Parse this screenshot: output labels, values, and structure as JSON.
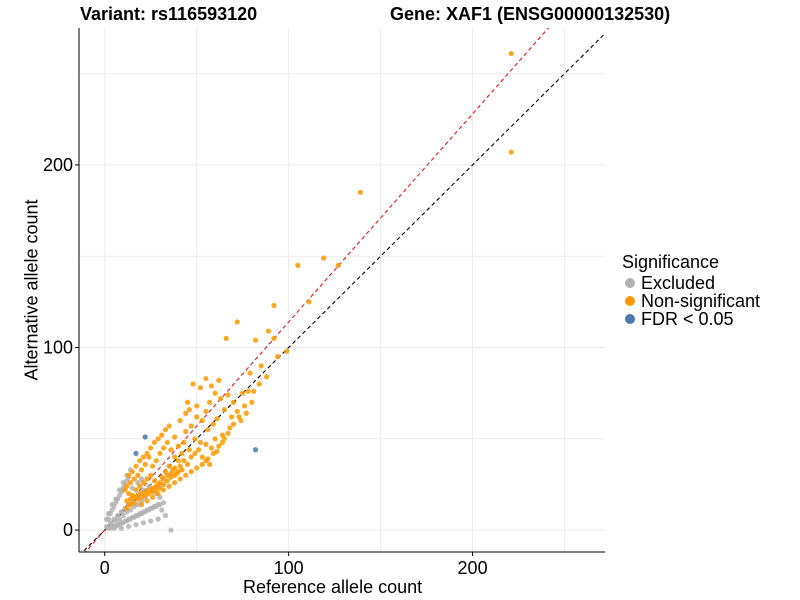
{
  "chart_data": {
    "type": "scatter",
    "title_variant": "Variant: rs116593120",
    "title_gene": "Gene: XAF1 (ENSG00000132530)",
    "xlabel": "Reference allele count",
    "ylabel": "Alternative allele count",
    "xlim": [
      -14,
      272
    ],
    "ylim": [
      -12,
      275
    ],
    "x_ticks": [
      0,
      100,
      200
    ],
    "y_ticks": [
      0,
      100,
      200
    ],
    "grid": true,
    "reference_lines": [
      {
        "name": "identity",
        "slope": 1,
        "intercept": 0,
        "color": "#000000",
        "dash": "dashed"
      },
      {
        "name": "fit",
        "slope": 1.14,
        "intercept": 0,
        "color": "#e41a1c",
        "dash": "dashed"
      }
    ],
    "legend": {
      "title": "Significance",
      "position": "right",
      "entries": [
        {
          "label": "Excluded",
          "color": "#b3b3b3"
        },
        {
          "label": "Non-significant",
          "color": "#ff9900"
        },
        {
          "label": "FDR < 0.05",
          "color": "#4a79b0"
        }
      ]
    },
    "series": [
      {
        "name": "Excluded",
        "color": "#b3b3b3",
        "points": [
          [
            1,
            2
          ],
          [
            2,
            1
          ],
          [
            3,
            4
          ],
          [
            4,
            3
          ],
          [
            5,
            6
          ],
          [
            6,
            5
          ],
          [
            7,
            8
          ],
          [
            8,
            6
          ],
          [
            9,
            10
          ],
          [
            10,
            8
          ],
          [
            11,
            12
          ],
          [
            12,
            10
          ],
          [
            13,
            14
          ],
          [
            14,
            11
          ],
          [
            15,
            16
          ],
          [
            16,
            13
          ],
          [
            17,
            18
          ],
          [
            18,
            14
          ],
          [
            19,
            20
          ],
          [
            20,
            16
          ],
          [
            21,
            22
          ],
          [
            22,
            18
          ],
          [
            2,
            6
          ],
          [
            3,
            9
          ],
          [
            4,
            11
          ],
          [
            5,
            13
          ],
          [
            6,
            15
          ],
          [
            7,
            17
          ],
          [
            8,
            19
          ],
          [
            9,
            21
          ],
          [
            10,
            23
          ],
          [
            11,
            25
          ],
          [
            12,
            27
          ],
          [
            13,
            29
          ],
          [
            6,
            2
          ],
          [
            8,
            3
          ],
          [
            10,
            4
          ],
          [
            12,
            5
          ],
          [
            14,
            6
          ],
          [
            16,
            7
          ],
          [
            18,
            8
          ],
          [
            20,
            9
          ],
          [
            22,
            10
          ],
          [
            24,
            11
          ],
          [
            26,
            12
          ],
          [
            28,
            13
          ],
          [
            30,
            14
          ],
          [
            32,
            15
          ],
          [
            3,
            1
          ],
          [
            5,
            2
          ],
          [
            7,
            3
          ],
          [
            9,
            4
          ],
          [
            11,
            5
          ],
          [
            13,
            6
          ],
          [
            15,
            7
          ],
          [
            17,
            8
          ],
          [
            19,
            9
          ],
          [
            21,
            10
          ],
          [
            23,
            11
          ],
          [
            25,
            12
          ],
          [
            27,
            13
          ],
          [
            29,
            14
          ],
          [
            36,
            0
          ],
          [
            1,
            6
          ],
          [
            2,
            9
          ],
          [
            4,
            14
          ],
          [
            6,
            17
          ],
          [
            8,
            22
          ],
          [
            10,
            26
          ],
          [
            12,
            30
          ],
          [
            14,
            33
          ],
          [
            5,
            1
          ],
          [
            9,
            1
          ],
          [
            13,
            2
          ],
          [
            17,
            3
          ],
          [
            21,
            4
          ],
          [
            25,
            5
          ],
          [
            29,
            6
          ],
          [
            33,
            8
          ],
          [
            15,
            23
          ],
          [
            18,
            26
          ],
          [
            20,
            28
          ],
          [
            24,
            24
          ],
          [
            26,
            22
          ],
          [
            28,
            20
          ],
          [
            30,
            18
          ],
          [
            31,
            11
          ]
        ]
      },
      {
        "name": "Non-significant",
        "color": "#ff9900",
        "points": [
          [
            221,
            261
          ],
          [
            221,
            207
          ],
          [
            139,
            185
          ],
          [
            119,
            149
          ],
          [
            105,
            145
          ],
          [
            127,
            145
          ],
          [
            111,
            125
          ],
          [
            92,
            123
          ],
          [
            72,
            114
          ],
          [
            99,
            98
          ],
          [
            89,
            109
          ],
          [
            82,
            104
          ],
          [
            92,
            105
          ],
          [
            66,
            105
          ],
          [
            48,
            80
          ],
          [
            52,
            78
          ],
          [
            55,
            83
          ],
          [
            58,
            79
          ],
          [
            60,
            75
          ],
          [
            62,
            82
          ],
          [
            45,
            70
          ],
          [
            50,
            68
          ],
          [
            55,
            65
          ],
          [
            57,
            70
          ],
          [
            63,
            72
          ],
          [
            67,
            74
          ],
          [
            70,
            70
          ],
          [
            72,
            65
          ],
          [
            75,
            75
          ],
          [
            78,
            76
          ],
          [
            81,
            76
          ],
          [
            80,
            70
          ],
          [
            76,
            68
          ],
          [
            74,
            60
          ],
          [
            69,
            62
          ],
          [
            65,
            66
          ],
          [
            61,
            61
          ],
          [
            59,
            58
          ],
          [
            68,
            56
          ],
          [
            64,
            52
          ],
          [
            60,
            50
          ],
          [
            56,
            55
          ],
          [
            53,
            60
          ],
          [
            50,
            62
          ],
          [
            47,
            57
          ],
          [
            44,
            54
          ],
          [
            41,
            60
          ],
          [
            38,
            51
          ],
          [
            40,
            46
          ],
          [
            43,
            48
          ],
          [
            46,
            44
          ],
          [
            49,
            50
          ],
          [
            52,
            48
          ],
          [
            55,
            47
          ],
          [
            58,
            45
          ],
          [
            61,
            43
          ],
          [
            64,
            48
          ],
          [
            67,
            53
          ],
          [
            30,
            42
          ],
          [
            32,
            45
          ],
          [
            34,
            48
          ],
          [
            36,
            44
          ],
          [
            38,
            40
          ],
          [
            40,
            38
          ],
          [
            42,
            42
          ],
          [
            28,
            38
          ],
          [
            26,
            35
          ],
          [
            24,
            40
          ],
          [
            22,
            36
          ],
          [
            20,
            33
          ],
          [
            18,
            30
          ],
          [
            16,
            28
          ],
          [
            14,
            26
          ],
          [
            12,
            24
          ],
          [
            11,
            22
          ],
          [
            13,
            20
          ],
          [
            15,
            19
          ],
          [
            17,
            22
          ],
          [
            19,
            24
          ],
          [
            21,
            26
          ],
          [
            23,
            28
          ],
          [
            25,
            30
          ],
          [
            27,
            27
          ],
          [
            29,
            25
          ],
          [
            31,
            29
          ],
          [
            33,
            32
          ],
          [
            35,
            35
          ],
          [
            37,
            33
          ],
          [
            39,
            31
          ],
          [
            41,
            35
          ],
          [
            43,
            38
          ],
          [
            45,
            36
          ],
          [
            47,
            40
          ],
          [
            49,
            42
          ],
          [
            51,
            44
          ],
          [
            53,
            40
          ],
          [
            55,
            38
          ],
          [
            57,
            36
          ],
          [
            12,
            16
          ],
          [
            14,
            17
          ],
          [
            16,
            18
          ],
          [
            18,
            19
          ],
          [
            20,
            20
          ],
          [
            22,
            21
          ],
          [
            24,
            22
          ],
          [
            26,
            23
          ],
          [
            28,
            24
          ],
          [
            30,
            26
          ],
          [
            32,
            28
          ],
          [
            34,
            30
          ],
          [
            36,
            31
          ],
          [
            38,
            34
          ],
          [
            25,
            45
          ],
          [
            23,
            42
          ],
          [
            21,
            40
          ],
          [
            19,
            38
          ],
          [
            17,
            35
          ],
          [
            15,
            32
          ],
          [
            13,
            30
          ],
          [
            27,
            48
          ],
          [
            29,
            50
          ],
          [
            31,
            52
          ],
          [
            33,
            55
          ],
          [
            35,
            57
          ],
          [
            44,
            64
          ],
          [
            46,
            66
          ],
          [
            20,
            14
          ],
          [
            23,
            16
          ],
          [
            26,
            18
          ],
          [
            29,
            20
          ],
          [
            32,
            22
          ],
          [
            35,
            24
          ],
          [
            38,
            26
          ],
          [
            41,
            28
          ],
          [
            44,
            30
          ],
          [
            47,
            32
          ],
          [
            50,
            34
          ],
          [
            53,
            36
          ],
          [
            56,
            39
          ],
          [
            59,
            42
          ],
          [
            62,
            46
          ],
          [
            65,
            50
          ],
          [
            12,
            12
          ],
          [
            14,
            14
          ],
          [
            16,
            15
          ],
          [
            18,
            17
          ],
          [
            20,
            18
          ],
          [
            22,
            19
          ],
          [
            24,
            20
          ],
          [
            26,
            21
          ],
          [
            28,
            22
          ],
          [
            30,
            23
          ],
          [
            32,
            25
          ],
          [
            34,
            27
          ],
          [
            36,
            29
          ],
          [
            38,
            30
          ],
          [
            40,
            32
          ],
          [
            42,
            33
          ],
          [
            70,
            58
          ],
          [
            73,
            62
          ],
          [
            77,
            64
          ],
          [
            85,
            90
          ],
          [
            88,
            84
          ],
          [
            84,
            80
          ],
          [
            79,
            86
          ],
          [
            94,
            95
          ]
        ]
      },
      {
        "name": "FDR < 0.05",
        "color": "#4a79b0",
        "points": [
          [
            22,
            51
          ],
          [
            17,
            42
          ],
          [
            82,
            44
          ]
        ]
      }
    ]
  }
}
